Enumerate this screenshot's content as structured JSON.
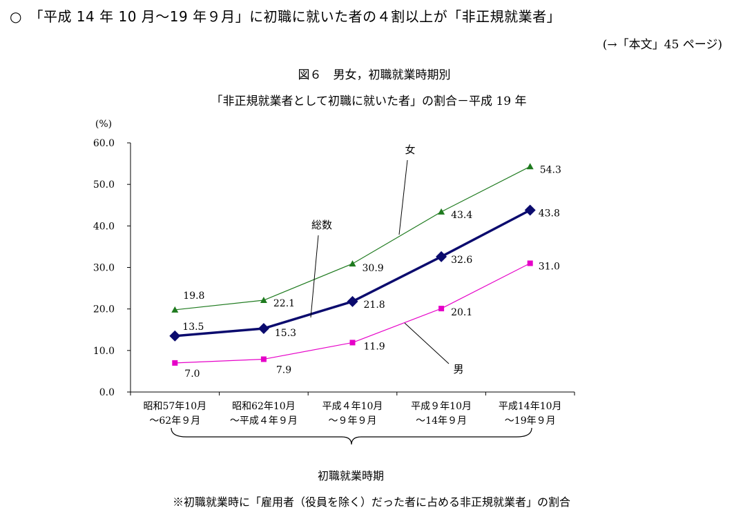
{
  "headline": "○　「平成 14 年 10 月～19 年９月」に初職に就いた者の４割以上が「非正規就業者」",
  "reference": "(→「本文」45 ページ)",
  "figure": {
    "title": "図６　男女，初職就業時期別",
    "subtitle": "「非正規就業者として初職に就いた者」の割合－平成 19 年",
    "xaxis_title": "初職就業時期",
    "footnote": "※初職就業時に「雇用者（役員を除く）だった者に占める非正規就業者」の割合"
  },
  "chart_data": {
    "type": "line",
    "ylabel": "(%)",
    "ylim": [
      0,
      60
    ],
    "yticks": [
      "0.0",
      "10.0",
      "20.0",
      "30.0",
      "40.0",
      "50.0",
      "60.0"
    ],
    "grid": false,
    "categories": [
      [
        "昭和57年10月",
        "～62年９月"
      ],
      [
        "昭和62年10月",
        "～平成４年９月"
      ],
      [
        "平成４年10月",
        "～９年９月"
      ],
      [
        "平成９年10月",
        "～14年９月"
      ],
      [
        "平成14年10月",
        "～19年９月"
      ]
    ],
    "series": [
      {
        "name": "女",
        "values": [
          19.8,
          22.1,
          30.9,
          43.4,
          54.3
        ],
        "labels": [
          "19.8",
          "22.1",
          "30.9",
          "43.4",
          "54.3"
        ],
        "color": "#1e7a1e",
        "marker": "triangle"
      },
      {
        "name": "総数",
        "values": [
          13.5,
          15.3,
          21.8,
          32.6,
          43.8
        ],
        "labels": [
          "13.5",
          "15.3",
          "21.8",
          "32.6",
          "43.8"
        ],
        "color": "#0b0b6e",
        "marker": "diamond"
      },
      {
        "name": "男",
        "values": [
          7.0,
          7.9,
          11.9,
          20.1,
          31.0
        ],
        "labels": [
          "7.0",
          "7.9",
          "11.9",
          "20.1",
          "31.0"
        ],
        "color": "#e600c8",
        "marker": "square"
      }
    ]
  }
}
